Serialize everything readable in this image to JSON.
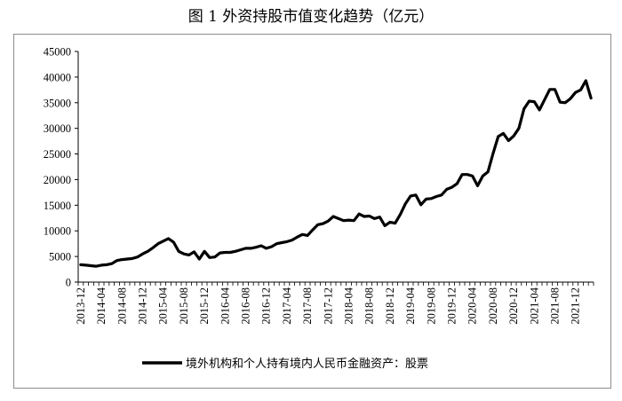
{
  "chart_data": {
    "type": "line",
    "title": "图 1  外资持股市值变化趋势（亿元）",
    "xlabel": "",
    "ylabel": "",
    "ylim": [
      0,
      45000
    ],
    "yticks": [
      0,
      5000,
      10000,
      15000,
      20000,
      25000,
      30000,
      35000,
      40000,
      45000
    ],
    "grid": false,
    "legend_position": "bottom",
    "x_tick_labels": [
      "2013-12",
      "2014-04",
      "2014-08",
      "2014-12",
      "2015-04",
      "2015-08",
      "2015-12",
      "2016-04",
      "2016-08",
      "2016-12",
      "2017-04",
      "2017-08",
      "2017-12",
      "2018-04",
      "2018-08",
      "2018-12",
      "2019-04",
      "2019-08",
      "2019-12",
      "2020-04",
      "2020-08",
      "2020-12",
      "2021-04",
      "2021-08",
      "2021-12"
    ],
    "series": [
      {
        "name": "境外机构和个人持有境内人民币金融资产：股票",
        "color": "#000000",
        "x": [
          "2013-12",
          "2014-01",
          "2014-02",
          "2014-03",
          "2014-04",
          "2014-05",
          "2014-06",
          "2014-07",
          "2014-08",
          "2014-09",
          "2014-10",
          "2014-11",
          "2014-12",
          "2015-01",
          "2015-02",
          "2015-03",
          "2015-04",
          "2015-05",
          "2015-06",
          "2015-07",
          "2015-08",
          "2015-09",
          "2015-10",
          "2015-11",
          "2015-12",
          "2016-01",
          "2016-02",
          "2016-03",
          "2016-04",
          "2016-05",
          "2016-06",
          "2016-07",
          "2016-08",
          "2016-09",
          "2016-10",
          "2016-11",
          "2016-12",
          "2017-01",
          "2017-02",
          "2017-03",
          "2017-04",
          "2017-05",
          "2017-06",
          "2017-07",
          "2017-08",
          "2017-09",
          "2017-10",
          "2017-11",
          "2017-12",
          "2018-01",
          "2018-02",
          "2018-03",
          "2018-04",
          "2018-05",
          "2018-06",
          "2018-07",
          "2018-08",
          "2018-09",
          "2018-10",
          "2018-11",
          "2018-12",
          "2019-01",
          "2019-02",
          "2019-03",
          "2019-04",
          "2019-05",
          "2019-06",
          "2019-07",
          "2019-08",
          "2019-09",
          "2019-10",
          "2019-11",
          "2019-12",
          "2020-01",
          "2020-02",
          "2020-03",
          "2020-04",
          "2020-05",
          "2020-06",
          "2020-07",
          "2020-08",
          "2020-09",
          "2020-10",
          "2020-11",
          "2020-12",
          "2021-01",
          "2021-02",
          "2021-03",
          "2021-04",
          "2021-05",
          "2021-06",
          "2021-07",
          "2021-08",
          "2021-09",
          "2021-10",
          "2021-11",
          "2021-12",
          "2022-01",
          "2022-02",
          "2022-03"
        ],
        "values": [
          3400,
          3300,
          3200,
          3100,
          3300,
          3400,
          3600,
          4200,
          4400,
          4500,
          4600,
          4900,
          5500,
          6000,
          6700,
          7500,
          8000,
          8500,
          7800,
          6000,
          5500,
          5300,
          5900,
          4500,
          6000,
          4800,
          4900,
          5700,
          5800,
          5800,
          6000,
          6300,
          6600,
          6600,
          6800,
          7100,
          6600,
          6900,
          7500,
          7700,
          7900,
          8200,
          8800,
          9300,
          9100,
          10200,
          11200,
          11400,
          11900,
          12800,
          12400,
          12000,
          12100,
          12000,
          13300,
          12800,
          12900,
          12400,
          12700,
          11000,
          11700,
          11500,
          13200,
          15300,
          16800,
          17000,
          15100,
          16200,
          16300,
          16700,
          17000,
          18100,
          18500,
          19200,
          21000,
          21000,
          20700,
          18800,
          20700,
          21500,
          25100,
          28400,
          29000,
          27600,
          28500,
          30000,
          33800,
          35300,
          35200,
          33600,
          35600,
          37600,
          37600,
          35100,
          35000,
          35800,
          37000,
          37500,
          39300,
          35900
        ]
      }
    ]
  }
}
